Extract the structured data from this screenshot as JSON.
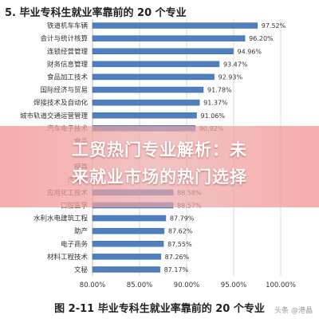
{
  "page_title": "5. 毕业专科生就业率靠前的 20 个专业",
  "figure_caption": "图 2-11    毕业专科生就业率靠前的 20 个专业",
  "watermark": "头条 @港晶",
  "overlay": {
    "line1": "工贸热门专业解析：未",
    "line2": "来就业市场的热门选择"
  },
  "colors": {
    "bar": "#4f7fbd",
    "bar_edge": "#3d6aa6",
    "grid": "#d9d9d9",
    "text": "#333333"
  },
  "chart_data": {
    "type": "bar",
    "orientation": "horizontal",
    "categories": [
      "铁道机车车辆",
      "会计与统计核算",
      "连锁经营管理",
      "财务信息管理",
      "食品加工技术",
      "国际经济与贸易",
      "焊接技术及自动化",
      "城市轨道交通运营管理",
      "汽车电子技术",
      "食品",
      "",
      "模具",
      "汽车制",
      "应用化工技术",
      "口腔医学",
      "水利水电建筑工程",
      "助产",
      "电子商务",
      "材料工程技术",
      "文秘"
    ],
    "values": [
      97.52,
      96.2,
      94.96,
      93.47,
      92.93,
      91.78,
      91.37,
      91.06,
      90.92,
      null,
      null,
      null,
      null,
      88.58,
      88.57,
      87.79,
      87.62,
      87.55,
      87.26,
      87.17
    ],
    "value_labels": [
      "97.52%",
      "96.20%",
      "94.96%",
      "93.47%",
      "92.93%",
      "91.78%",
      "91.37%",
      "91.06%",
      "90.92%",
      "",
      "",
      "",
      "",
      "88.58%",
      "88.57%",
      "87.79%",
      "87.62%",
      "87.55%",
      "87.26%",
      "87.17%"
    ],
    "xlim": [
      80,
      100
    ],
    "x_ticks": [
      80,
      85,
      90,
      95,
      100
    ],
    "x_tick_labels": [
      "80.00%",
      "85.00%",
      "90.00%",
      "95.00%",
      "100.00%"
    ],
    "grid": true,
    "xlabel": "",
    "ylabel": ""
  }
}
